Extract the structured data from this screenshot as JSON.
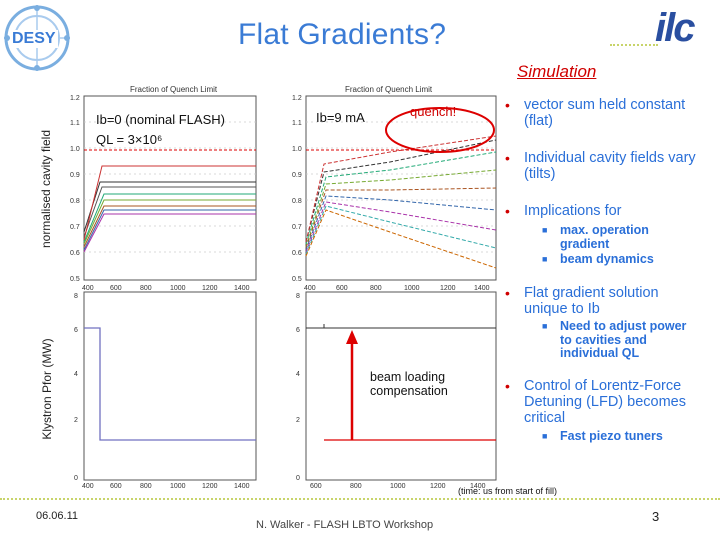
{
  "header": {
    "logo_left": "DESY",
    "title": "Flat Gradients?",
    "logo_right": "ilc",
    "simulation_label": "Simulation"
  },
  "plots": {
    "top_left": {
      "top_axis_label": "Fraction of Quench Limit",
      "ylabel": "normalised cavity field",
      "legend_line1": "Ib=0 (nominal FLASH)",
      "legend_line2": "QL = 3×10⁶",
      "yticks": [
        "1.2",
        "1.1",
        "1.0",
        "0.9",
        "0.8",
        "0.7",
        "0.6",
        "0.5"
      ],
      "xticks": [
        "400",
        "600",
        "800",
        "1000",
        "1200",
        "1400"
      ]
    },
    "top_right": {
      "top_axis_label": "Fraction of Quench Limit",
      "legend": "Ib=9 mA",
      "quench_label": "quench!",
      "yticks": [
        "1.2",
        "1.1",
        "1.0",
        "0.9",
        "0.8",
        "0.7",
        "0.6",
        "0.5"
      ],
      "xticks": [
        "400",
        "600",
        "800",
        "1000",
        "1200",
        "1400"
      ]
    },
    "bottom_left": {
      "ylabel": "Klystron Pfor (MW)",
      "yticks": [
        "8",
        "6",
        "4",
        "2",
        "0"
      ],
      "xticks": [
        "400",
        "600",
        "800",
        "1000",
        "1200",
        "1400"
      ]
    },
    "bottom_right": {
      "annotation_line1": "beam loading",
      "annotation_line2": "compensation",
      "yticks": [
        "8",
        "6",
        "4",
        "2",
        "0"
      ],
      "xticks": [
        "600",
        "800",
        "1000",
        "1200",
        "1400"
      ]
    },
    "time_note": "(time: us from start of fill)"
  },
  "bullets": [
    {
      "text": "vector sum held constant (flat)",
      "subs": []
    },
    {
      "text": "Individual cavity fields vary (tilts)",
      "subs": []
    },
    {
      "text": "Implications for",
      "subs": [
        "max. operation gradient",
        "beam dynamics"
      ]
    },
    {
      "text": "Flat gradient solution unique to Ib",
      "subs": [
        "Need to adjust power to cavities and individual QL"
      ]
    },
    {
      "text": "Control of Lorentz-Force Detuning (LFD) becomes critical",
      "subs": [
        "Fast piezo tuners"
      ]
    }
  ],
  "footer": {
    "date": "06.06.11",
    "author": "N. Walker - FLASH LBTO Workshop",
    "page": "3"
  },
  "colors": {
    "title_blue": "#3a7bd5",
    "accent_red": "#d00000",
    "dotted_line": "#c8d46a"
  }
}
